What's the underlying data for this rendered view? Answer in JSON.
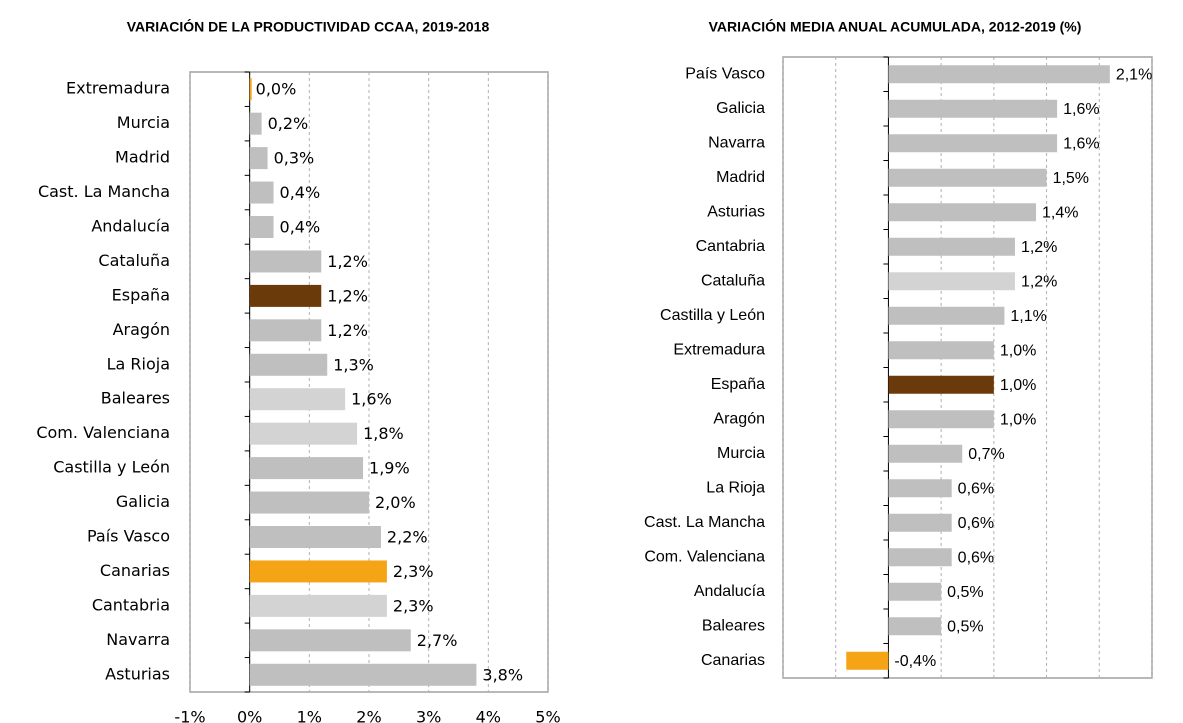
{
  "chart_data": [
    {
      "type": "bar",
      "orientation": "horizontal",
      "title": "VARIACIÓN DE LA PRODUCTIVIDAD CCAA, 2019-2018",
      "categories": [
        "Extremadura",
        "Murcia",
        "Madrid",
        "Cast. La Mancha",
        "Andalucía",
        "Cataluña",
        "España",
        "Aragón",
        "La Rioja",
        "Baleares",
        "Com. Valenciana",
        "Castilla y León",
        "Galicia",
        "País Vasco",
        "Canarias",
        "Cantabria",
        "Navarra",
        "Asturias"
      ],
      "values": [
        0.0,
        0.2,
        0.3,
        0.4,
        0.4,
        1.2,
        1.2,
        1.2,
        1.3,
        1.6,
        1.8,
        1.9,
        2.0,
        2.2,
        2.3,
        2.3,
        2.7,
        3.8
      ],
      "value_labels": [
        "0,0%",
        "0,2%",
        "0,3%",
        "0,4%",
        "0,4%",
        "1,2%",
        "1,2%",
        "1,2%",
        "1,3%",
        "1,6%",
        "1,8%",
        "1,9%",
        "2,0%",
        "2,2%",
        "2,3%",
        "2,3%",
        "2,7%",
        "3,8%"
      ],
      "colors": [
        "#f5a416",
        "#bfbfbf",
        "#bfbfbf",
        "#bfbfbf",
        "#bfbfbf",
        "#bfbfbf",
        "#6b3a0a",
        "#bfbfbf",
        "#bfbfbf",
        "#d3d3d3",
        "#d3d3d3",
        "#bfbfbf",
        "#bfbfbf",
        "#bfbfbf",
        "#f5a416",
        "#d3d3d3",
        "#bfbfbf",
        "#bfbfbf"
      ],
      "xlim": [
        -1,
        5
      ],
      "xticks": [
        {
          "value": -1,
          "label": "-1%"
        },
        {
          "value": 0,
          "label": "0%"
        },
        {
          "value": 1,
          "label": "1%"
        },
        {
          "value": 2,
          "label": "2%"
        },
        {
          "value": 3,
          "label": "3%"
        },
        {
          "value": 4,
          "label": "4%"
        },
        {
          "value": 5,
          "label": "5%"
        }
      ],
      "grid": true
    },
    {
      "type": "bar",
      "orientation": "horizontal",
      "title": "VARIACIÓN MEDIA ANUAL ACUMULADA, 2012-2019 (%)",
      "categories": [
        "País Vasco",
        "Galicia",
        "Navarra",
        "Madrid",
        "Asturias",
        "Cantabria",
        "Cataluña",
        "Castilla y León",
        "Extremadura",
        "España",
        "Aragón",
        "Murcia",
        "La Rioja",
        "Cast. La Mancha",
        "Com. Valenciana",
        "Andalucía",
        "Baleares",
        "Canarias"
      ],
      "values": [
        2.1,
        1.6,
        1.6,
        1.5,
        1.4,
        1.2,
        1.2,
        1.1,
        1.0,
        1.0,
        1.0,
        0.7,
        0.6,
        0.6,
        0.6,
        0.5,
        0.5,
        -0.4
      ],
      "value_labels": [
        "2,1%",
        "1,6%",
        "1,6%",
        "1,5%",
        "1,4%",
        "1,2%",
        "1,2%",
        "1,1%",
        "1,0%",
        "1,0%",
        "1,0%",
        "0,7%",
        "0,6%",
        "0,6%",
        "0,6%",
        "0,5%",
        "0,5%",
        "-0,4%"
      ],
      "colors": [
        "#bfbfbf",
        "#bfbfbf",
        "#bfbfbf",
        "#bfbfbf",
        "#bfbfbf",
        "#bfbfbf",
        "#d3d3d3",
        "#bfbfbf",
        "#bfbfbf",
        "#6b3a0a",
        "#bfbfbf",
        "#bfbfbf",
        "#bfbfbf",
        "#bfbfbf",
        "#bfbfbf",
        "#bfbfbf",
        "#bfbfbf",
        "#f5a416"
      ],
      "xlim": [
        -1,
        2.5
      ],
      "xticks": [
        -1,
        -0.5,
        0,
        0.5,
        1,
        1.5,
        2,
        2.5
      ],
      "grid": true
    }
  ]
}
